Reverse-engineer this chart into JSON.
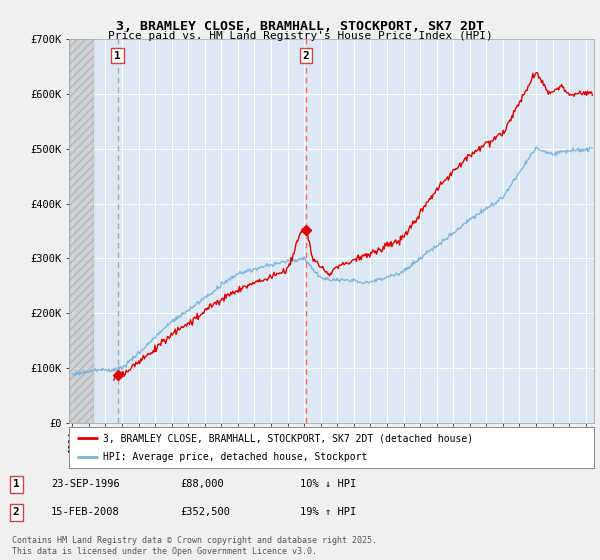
{
  "title_line1": "3, BRAMLEY CLOSE, BRAMHALL, STOCKPORT, SK7 2DT",
  "title_line2": "Price paid vs. HM Land Registry's House Price Index (HPI)",
  "background_color": "#f0f0f0",
  "plot_bg_color": "#dce9f5",
  "red_line_color": "#dd0000",
  "blue_line_color": "#7ab0d4",
  "vline1_color": "#999999",
  "vline2_color": "#ff6666",
  "marker_color": "#dd0000",
  "ylim": [
    0,
    700000
  ],
  "yticks": [
    0,
    100000,
    200000,
    300000,
    400000,
    500000,
    600000,
    700000
  ],
  "ytick_labels": [
    "£0",
    "£100K",
    "£200K",
    "£300K",
    "£400K",
    "£500K",
    "£600K",
    "£700K"
  ],
  "xlim_start": 1993.8,
  "xlim_end": 2025.5,
  "xticks": [
    1994,
    1995,
    1996,
    1997,
    1998,
    1999,
    2000,
    2001,
    2002,
    2003,
    2004,
    2005,
    2006,
    2007,
    2008,
    2009,
    2010,
    2011,
    2012,
    2013,
    2014,
    2015,
    2016,
    2017,
    2018,
    2019,
    2020,
    2021,
    2022,
    2023,
    2024,
    2025
  ],
  "event1_x": 1996.73,
  "event1_y": 88000,
  "event1_label": "1",
  "event1_date": "23-SEP-1996",
  "event1_price": "£88,000",
  "event1_hpi": "10% ↓ HPI",
  "event2_x": 2008.12,
  "event2_y": 352500,
  "event2_label": "2",
  "event2_date": "15-FEB-2008",
  "event2_price": "£352,500",
  "event2_hpi": "19% ↑ HPI",
  "legend_label_red": "3, BRAMLEY CLOSE, BRAMHALL, STOCKPORT, SK7 2DT (detached house)",
  "legend_label_blue": "HPI: Average price, detached house, Stockport",
  "footer_text": "Contains HM Land Registry data © Crown copyright and database right 2025.\nThis data is licensed under the Open Government Licence v3.0.",
  "hatch_end_year": 1995.3
}
